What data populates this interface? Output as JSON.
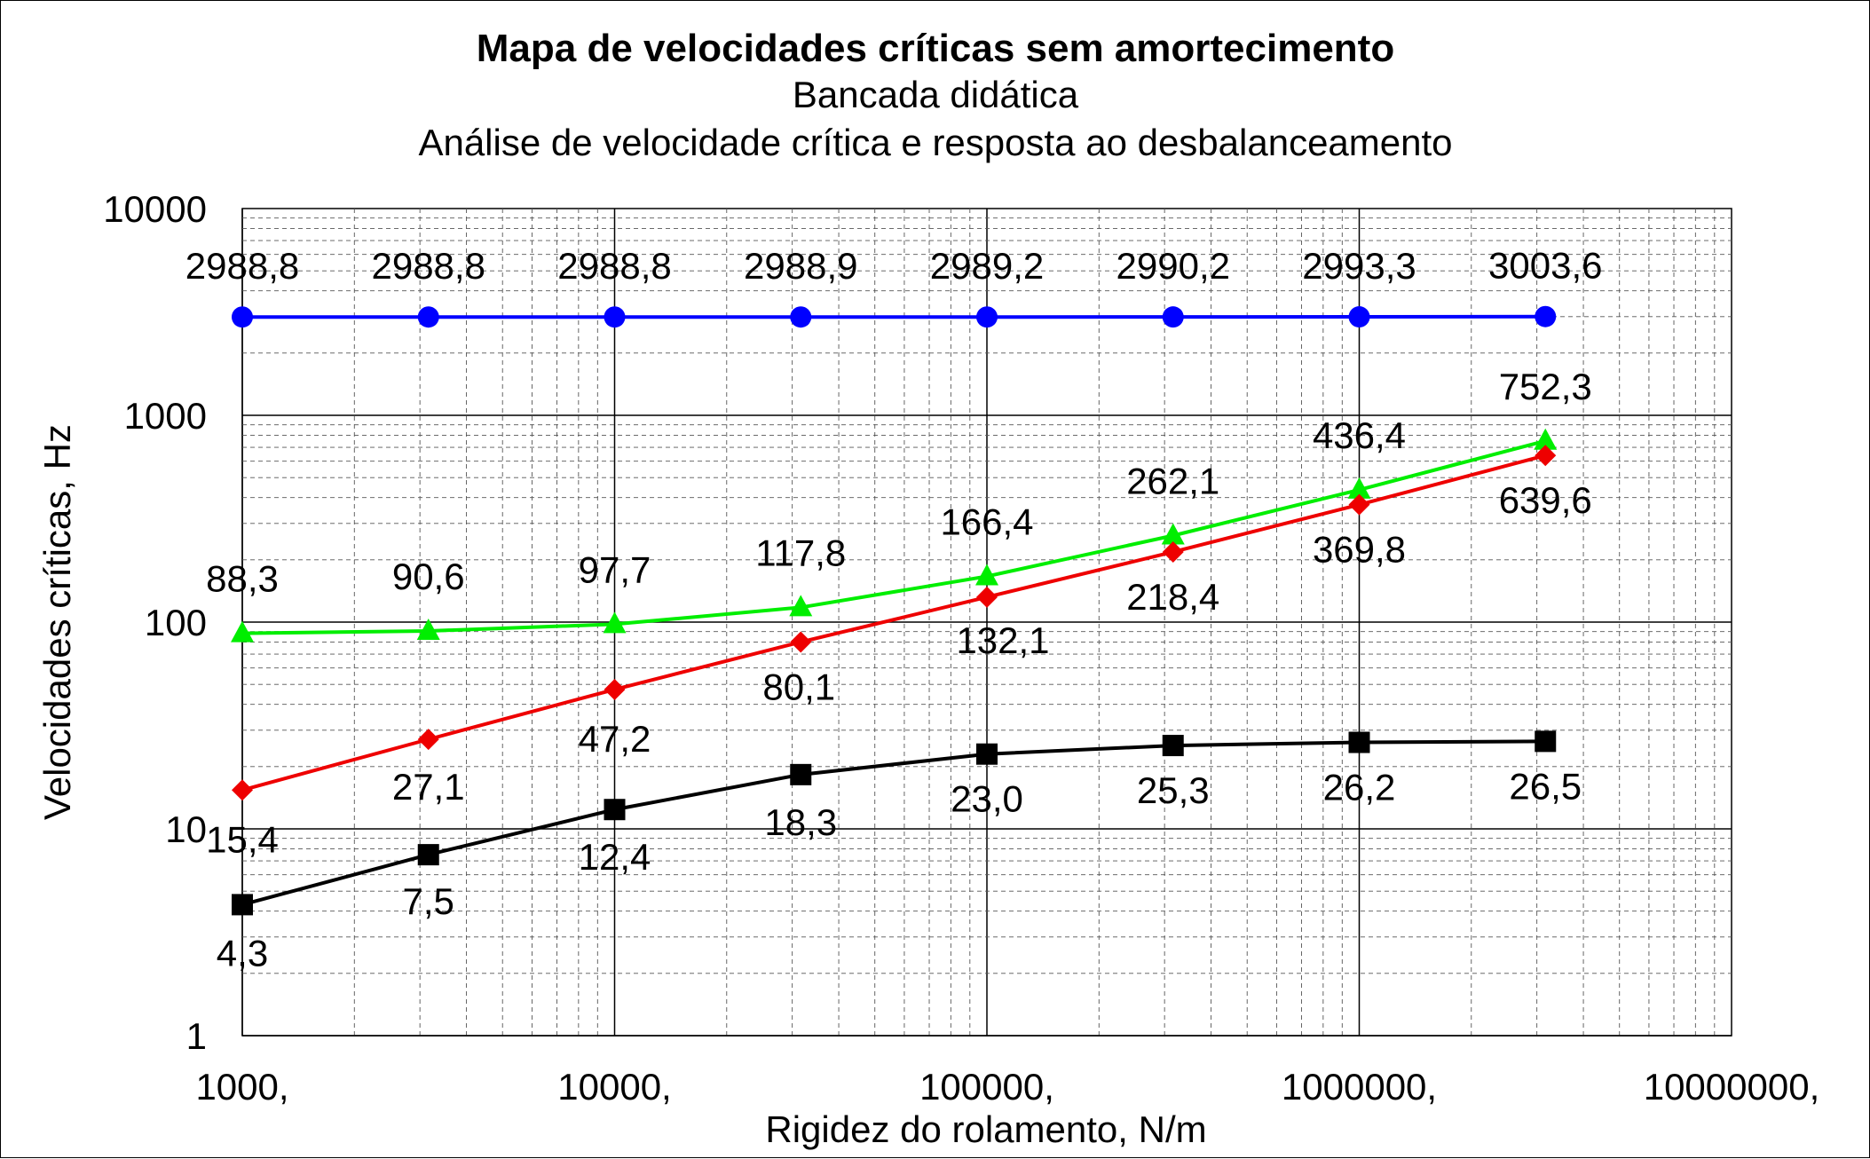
{
  "chart_data": {
    "type": "line",
    "title": "Mapa de velocidades críticas sem amortecimento",
    "subtitle": [
      "Bancada didática",
      "Análise de velocidade crítica e resposta ao desbalanceamento"
    ],
    "xlabel": "Rigidez do rolamento, N/m",
    "ylabel": "Velocidades críticas, Hz",
    "xscale": "log",
    "yscale": "log",
    "xlim": [
      1000,
      10000000
    ],
    "ylim": [
      1,
      10000
    ],
    "grid": true,
    "legend": "none",
    "x_tick_labels": [
      "1000,",
      "10000,",
      "100000,",
      "1000000,",
      "10000000,"
    ],
    "y_tick_labels": [
      "1",
      "10",
      "100",
      "1000",
      "10000"
    ],
    "x": [
      1000,
      3162,
      10000,
      31623,
      100000,
      316228,
      1000000,
      3162278
    ],
    "series": [
      {
        "color": "#0000ff",
        "marker": "circle",
        "values": [
          2988.8,
          2988.8,
          2988.8,
          2988.9,
          2989.2,
          2990.2,
          2993.3,
          3003.6
        ],
        "labels": [
          "2988,8",
          "2988,8",
          "2988,8",
          "2988,9",
          "2989,2",
          "2990,2",
          "2993,3",
          "3003,6"
        ]
      },
      {
        "color": "#00ee00",
        "marker": "triangle",
        "values": [
          88.3,
          90.6,
          97.7,
          117.8,
          166.4,
          262.1,
          436.4,
          752.3
        ],
        "labels": [
          "88,3",
          "90,6",
          "97,7",
          "117,8",
          "166,4",
          "262,1",
          "436,4",
          "752,3"
        ]
      },
      {
        "color": "#ee0000",
        "marker": "diamond",
        "values": [
          15.4,
          27.1,
          47.2,
          80.1,
          132.1,
          218.4,
          369.8,
          639.6
        ],
        "labels": [
          "15,4",
          "27,1",
          "47,2",
          "80,1",
          "132,1",
          "218,4",
          "369,8",
          "639,6"
        ]
      },
      {
        "color": "#000000",
        "marker": "square",
        "values": [
          4.3,
          7.5,
          12.4,
          18.3,
          23.0,
          25.3,
          26.2,
          26.5
        ],
        "labels": [
          "4,3",
          "7,5",
          "12,4",
          "18,3",
          "23,0",
          "25,3",
          "26,2",
          "26,5"
        ]
      }
    ]
  }
}
